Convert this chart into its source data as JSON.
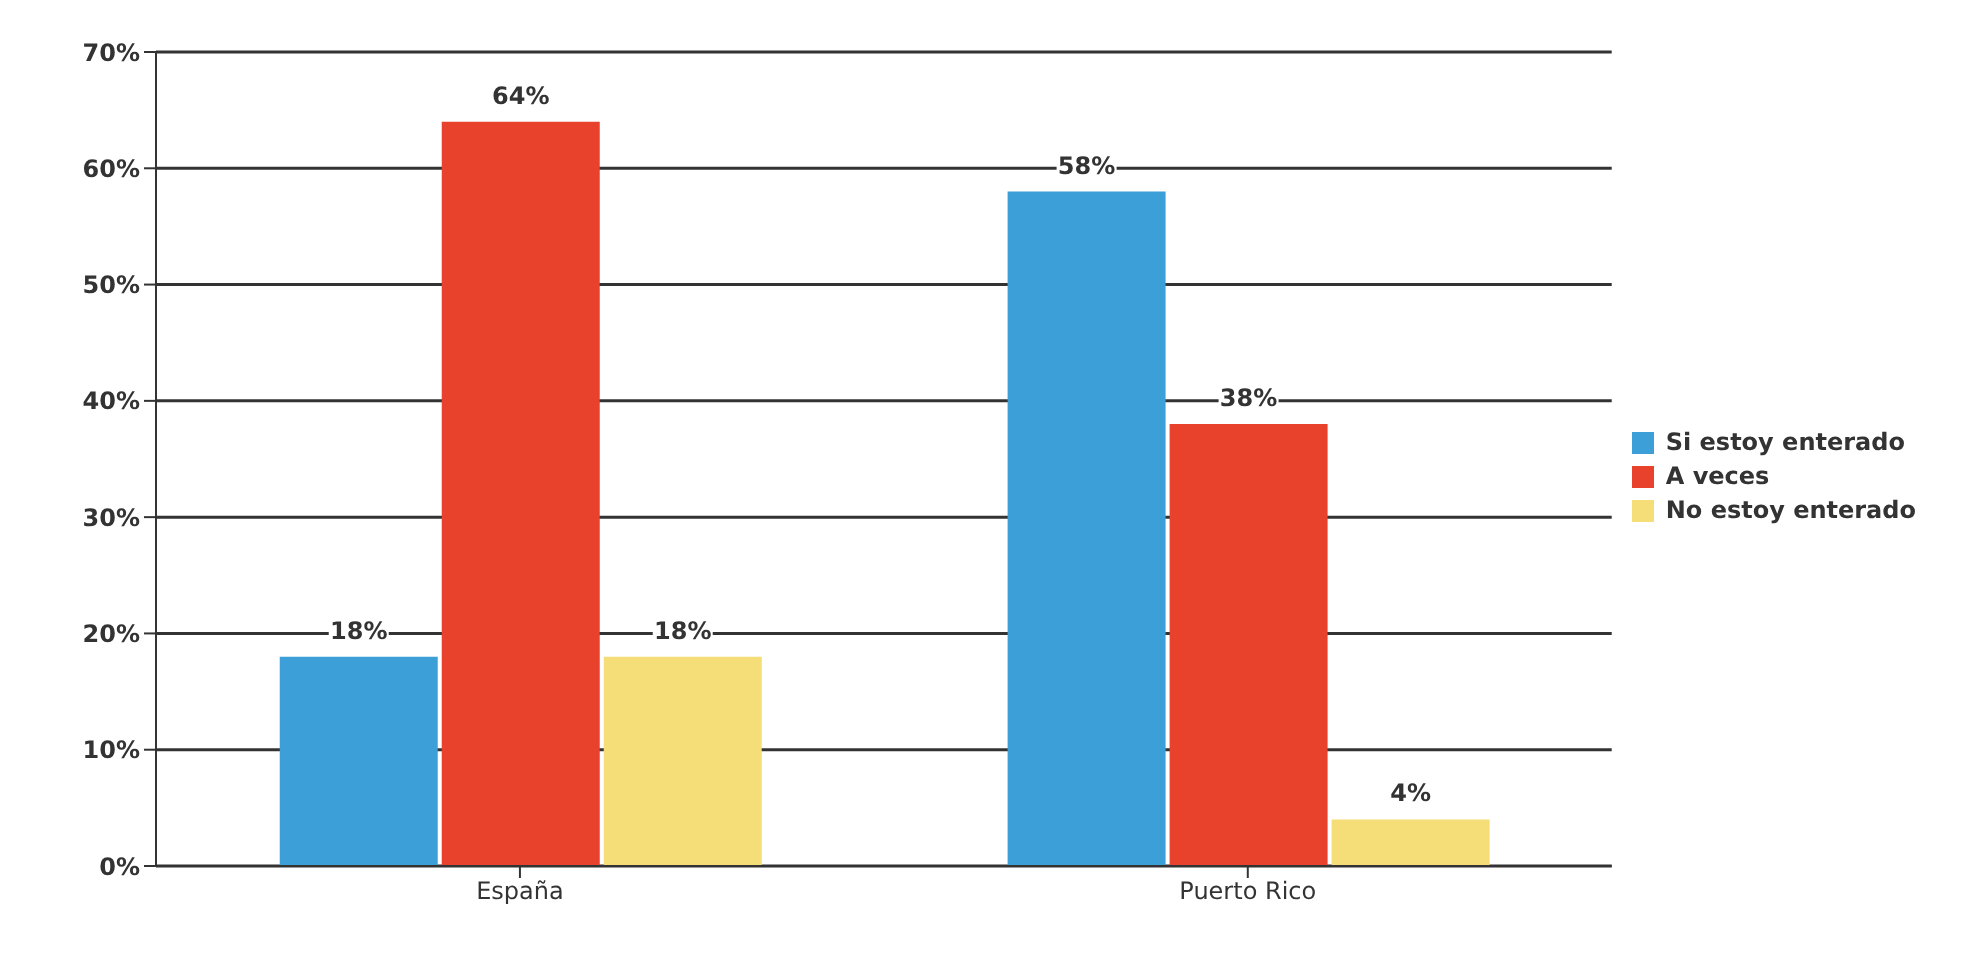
{
  "chart_data": {
    "type": "bar",
    "categories": [
      "España",
      "Puerto Rico"
    ],
    "series": [
      {
        "name": "Si estoy enterado",
        "color": "#3d9fd8",
        "values": [
          18,
          58
        ],
        "value_labels": [
          "18%",
          "58%"
        ]
      },
      {
        "name": "A veces",
        "color": "#e8412c",
        "values": [
          64,
          38
        ],
        "value_labels": [
          "64%",
          "38%"
        ]
      },
      {
        "name": "No estoy enterado",
        "color": "#f5de78",
        "values": [
          18,
          4
        ],
        "value_labels": [
          "18%",
          "4%"
        ]
      }
    ],
    "ylim": [
      0,
      70
    ],
    "yticks": [
      {
        "value": 0,
        "label": "0%"
      },
      {
        "value": 10,
        "label": "10%"
      },
      {
        "value": 20,
        "label": "20%"
      },
      {
        "value": 30,
        "label": "30%"
      },
      {
        "value": 40,
        "label": "40%"
      },
      {
        "value": 50,
        "label": "50%"
      },
      {
        "value": 60,
        "label": "60%"
      },
      {
        "value": 70,
        "label": "70%"
      }
    ],
    "grid": "y",
    "legend": "right"
  }
}
